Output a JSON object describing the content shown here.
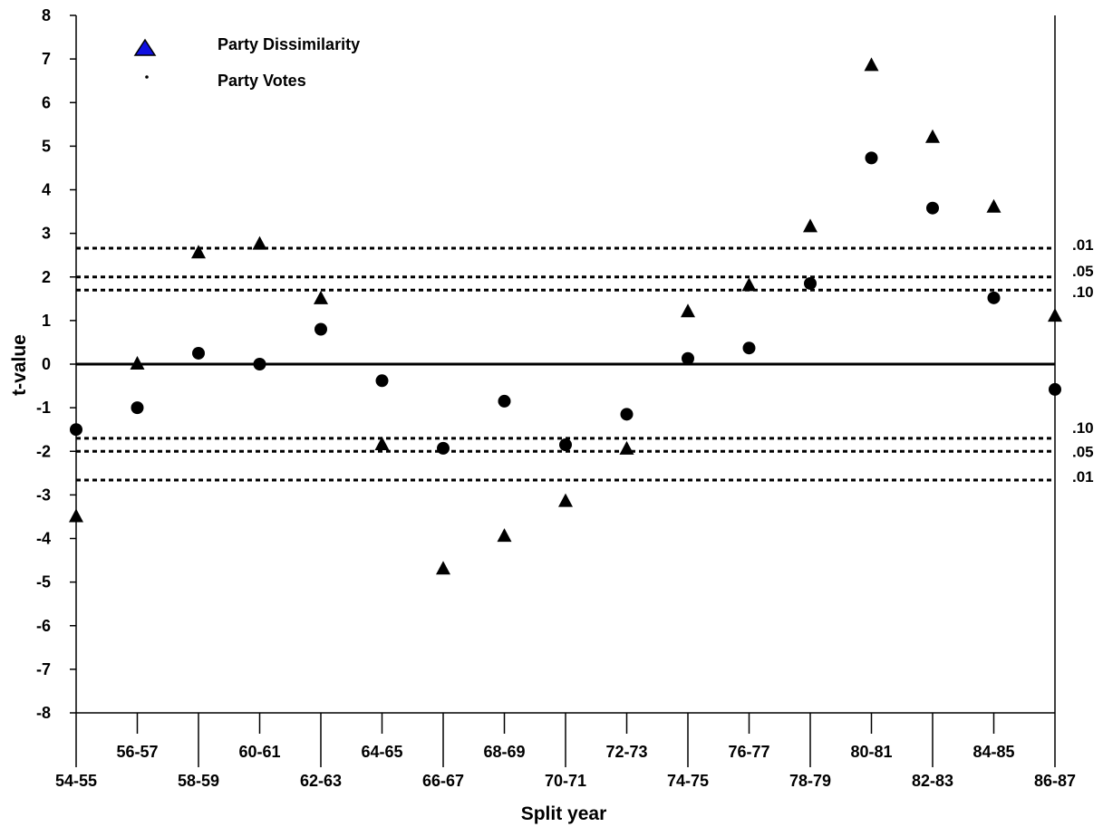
{
  "chart_data": {
    "type": "scatter",
    "title": "",
    "xlabel": "Split year",
    "ylabel": "t-value",
    "ylim": [
      -8,
      8
    ],
    "yticks": [
      "8",
      "7",
      "6",
      "5",
      "4",
      "3",
      "2",
      "1",
      "0",
      "-1",
      "-2",
      "-3",
      "-4",
      "-5",
      "-6",
      "-7",
      "-8"
    ],
    "categories": [
      "54-55",
      "56-57",
      "58-59",
      "60-61",
      "62-63",
      "64-65",
      "66-67",
      "68-69",
      "70-71",
      "72-73",
      "74-75",
      "76-77",
      "78-79",
      "80-81",
      "82-83",
      "84-85",
      "86-87"
    ],
    "series": [
      {
        "name": "Party Dissimilarity",
        "marker": "triangle",
        "legend_color": "#1010e0",
        "values": [
          -3.5,
          0.0,
          2.55,
          2.75,
          1.5,
          -1.85,
          -4.7,
          -3.95,
          -3.15,
          -1.95,
          1.2,
          1.8,
          3.15,
          6.85,
          5.2,
          3.6,
          1.1
        ]
      },
      {
        "name": "Party Votes",
        "marker": "circle",
        "values": [
          -1.5,
          -1.0,
          0.25,
          0.0,
          0.8,
          -0.38,
          -1.93,
          -0.85,
          -1.85,
          -1.15,
          0.13,
          0.37,
          1.85,
          4.73,
          3.58,
          1.52,
          -0.58
        ]
      }
    ],
    "reference_lines": [
      {
        "value": 2.66,
        "label": ".01"
      },
      {
        "value": 2.0,
        "label": ".05"
      },
      {
        "value": 1.7,
        "label": ".10"
      },
      {
        "value": -1.7,
        "label": ".10"
      },
      {
        "value": -2.0,
        "label": ".05"
      },
      {
        "value": -2.66,
        "label": ".01"
      }
    ],
    "zero_line": 0,
    "legend_position": "top-left",
    "grid": false
  }
}
